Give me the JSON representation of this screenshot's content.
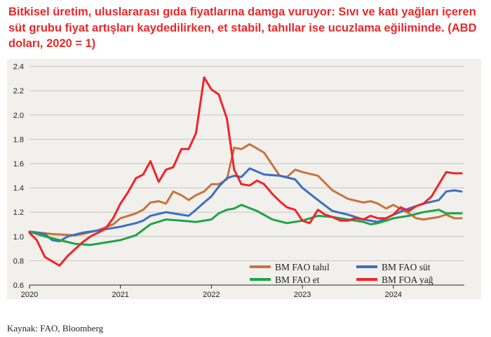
{
  "title": "Bitkisel üretim, uluslararası gıda fiyatlarına damga vuruyor: Sıvı ve katı yağları içeren süt grubu fiyat artışları kaydedilirken, et stabil, tahıllar ise ucuzlama eğiliminde. (ABD doları, 2020 = 1)",
  "source": "Kaynak: FAO, Bloomberg",
  "chart_data": {
    "type": "line",
    "title": "Bitkisel üretim, uluslararası gıda fiyatlarına damga vuruyor: Sıvı ve katı yağları içeren süt grubu fiyat artışları kaydedilirken, et stabil, tahıllar ise ucuzlama eğiliminde. (ABD doları, 2020 = 1)",
    "xlabel": "",
    "ylabel": "",
    "xlim": [
      2020,
      2024.78
    ],
    "ylim": [
      0.6,
      2.45
    ],
    "yticks": [
      "0.6",
      "0.8",
      "1.0",
      "1.2",
      "1.4",
      "1.6",
      "1.8",
      "2.0",
      "2.2",
      "2.4"
    ],
    "xticks": [
      "2020",
      "2021",
      "2022",
      "2023",
      "2024"
    ],
    "grid": "horizontal",
    "legend_position": "bottom-right",
    "series": [
      {
        "name": "BM FAO tahıl",
        "color": "#c8733e",
        "x": [
          2020.0,
          2020.25,
          2020.5,
          2020.58,
          2020.75,
          2020.92,
          2021.0,
          2021.17,
          2021.25,
          2021.33,
          2021.42,
          2021.5,
          2021.58,
          2021.67,
          2021.75,
          2021.83,
          2021.92,
          2022.0,
          2022.08,
          2022.17,
          2022.25,
          2022.33,
          2022.42,
          2022.58,
          2022.75,
          2022.83,
          2022.92,
          2023.0,
          2023.17,
          2023.33,
          2023.5,
          2023.67,
          2023.75,
          2023.83,
          2023.92,
          2024.0,
          2024.17,
          2024.25,
          2024.33,
          2024.5,
          2024.58,
          2024.67,
          2024.75
        ],
        "y": [
          1.04,
          1.02,
          1.01,
          1.02,
          1.05,
          1.1,
          1.15,
          1.19,
          1.22,
          1.28,
          1.29,
          1.27,
          1.37,
          1.34,
          1.3,
          1.34,
          1.37,
          1.43,
          1.43,
          1.47,
          1.73,
          1.72,
          1.76,
          1.69,
          1.5,
          1.49,
          1.55,
          1.53,
          1.5,
          1.38,
          1.31,
          1.28,
          1.29,
          1.27,
          1.23,
          1.26,
          1.19,
          1.15,
          1.14,
          1.16,
          1.18,
          1.15,
          1.15
        ]
      },
      {
        "name": "BM FAO süt",
        "color": "#3b6fc4",
        "x": [
          2020.0,
          2020.17,
          2020.25,
          2020.33,
          2020.42,
          2020.58,
          2020.75,
          2020.92,
          2021.0,
          2021.17,
          2021.25,
          2021.33,
          2021.5,
          2021.58,
          2021.75,
          2021.83,
          2021.92,
          2022.0,
          2022.08,
          2022.17,
          2022.25,
          2022.33,
          2022.42,
          2022.58,
          2022.75,
          2022.92,
          2023.0,
          2023.17,
          2023.33,
          2023.5,
          2023.67,
          2023.83,
          2023.92,
          2024.0,
          2024.17,
          2024.33,
          2024.5,
          2024.58,
          2024.67,
          2024.75
        ],
        "y": [
          1.04,
          1.02,
          0.97,
          0.96,
          1.0,
          1.03,
          1.05,
          1.07,
          1.08,
          1.11,
          1.13,
          1.17,
          1.2,
          1.19,
          1.17,
          1.22,
          1.28,
          1.33,
          1.41,
          1.48,
          1.5,
          1.49,
          1.56,
          1.51,
          1.5,
          1.47,
          1.4,
          1.3,
          1.21,
          1.18,
          1.14,
          1.12,
          1.15,
          1.18,
          1.23,
          1.27,
          1.3,
          1.37,
          1.38,
          1.37
        ]
      },
      {
        "name": "BM FAO et",
        "color": "#1fa34a",
        "x": [
          2020.0,
          2020.17,
          2020.33,
          2020.5,
          2020.67,
          2020.83,
          2021.0,
          2021.17,
          2021.33,
          2021.5,
          2021.67,
          2021.83,
          2022.0,
          2022.08,
          2022.17,
          2022.25,
          2022.33,
          2022.5,
          2022.67,
          2022.83,
          2023.0,
          2023.17,
          2023.33,
          2023.5,
          2023.67,
          2023.75,
          2023.83,
          2023.92,
          2024.0,
          2024.17,
          2024.33,
          2024.5,
          2024.58,
          2024.67,
          2024.75
        ],
        "y": [
          1.04,
          1.0,
          0.97,
          0.94,
          0.93,
          0.95,
          0.97,
          1.01,
          1.1,
          1.14,
          1.13,
          1.12,
          1.14,
          1.19,
          1.22,
          1.23,
          1.26,
          1.21,
          1.14,
          1.11,
          1.13,
          1.17,
          1.16,
          1.14,
          1.12,
          1.1,
          1.11,
          1.13,
          1.15,
          1.17,
          1.2,
          1.22,
          1.19,
          1.19,
          1.19
        ]
      },
      {
        "name": "BM FOA yağ",
        "color": "#f02428",
        "x": [
          2020.0,
          2020.08,
          2020.17,
          2020.33,
          2020.42,
          2020.58,
          2020.67,
          2020.83,
          2020.92,
          2021.0,
          2021.08,
          2021.17,
          2021.25,
          2021.33,
          2021.42,
          2021.5,
          2021.58,
          2021.67,
          2021.75,
          2021.83,
          2021.92,
          2022.0,
          2022.08,
          2022.17,
          2022.25,
          2022.33,
          2022.42,
          2022.5,
          2022.58,
          2022.67,
          2022.75,
          2022.83,
          2022.92,
          2023.0,
          2023.08,
          2023.17,
          2023.25,
          2023.33,
          2023.42,
          2023.5,
          2023.58,
          2023.67,
          2023.75,
          2023.83,
          2023.92,
          2024.0,
          2024.08,
          2024.17,
          2024.25,
          2024.33,
          2024.42,
          2024.5,
          2024.58,
          2024.67,
          2024.75
        ],
        "y": [
          1.03,
          0.97,
          0.83,
          0.76,
          0.84,
          0.95,
          1.0,
          1.06,
          1.15,
          1.27,
          1.36,
          1.48,
          1.51,
          1.62,
          1.45,
          1.55,
          1.57,
          1.72,
          1.72,
          1.85,
          2.31,
          2.21,
          2.17,
          1.97,
          1.55,
          1.43,
          1.42,
          1.46,
          1.43,
          1.35,
          1.29,
          1.24,
          1.22,
          1.13,
          1.11,
          1.22,
          1.18,
          1.16,
          1.13,
          1.13,
          1.15,
          1.14,
          1.17,
          1.15,
          1.15,
          1.18,
          1.24,
          1.21,
          1.25,
          1.27,
          1.33,
          1.43,
          1.53,
          1.52,
          1.52
        ]
      }
    ]
  }
}
